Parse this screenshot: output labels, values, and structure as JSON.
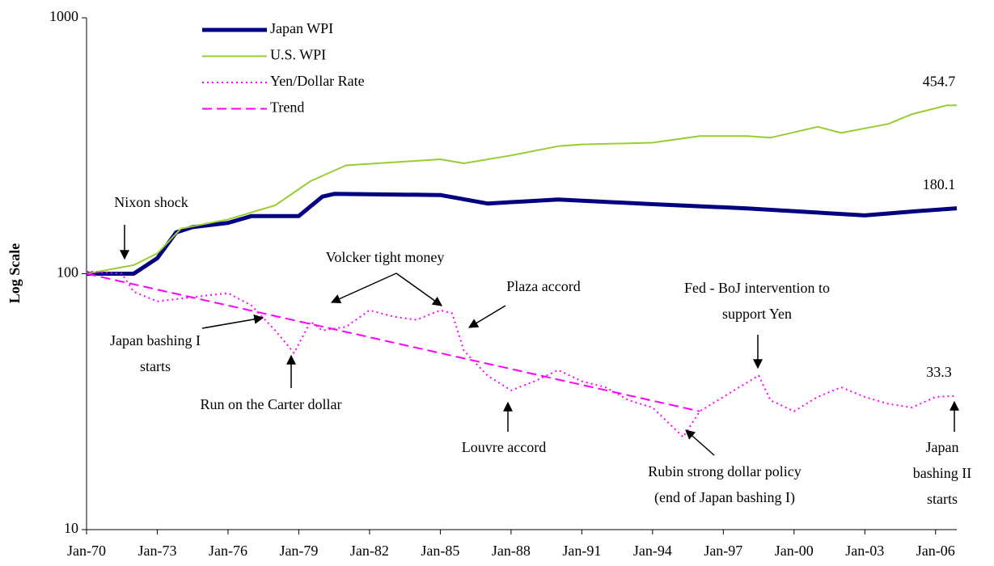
{
  "chart_data": {
    "type": "line",
    "y_label": "Log Scale",
    "log_y": true,
    "ylim": [
      10,
      1000
    ],
    "yticks": [
      10,
      100,
      1000
    ],
    "xlim": [
      1970,
      2006.9
    ],
    "xticks": [
      {
        "value": 1970,
        "label": "Jan-70"
      },
      {
        "value": 1973,
        "label": "Jan-73"
      },
      {
        "value": 1976,
        "label": "Jan-76"
      },
      {
        "value": 1979,
        "label": "Jan-79"
      },
      {
        "value": 1982,
        "label": "Jan-82"
      },
      {
        "value": 1985,
        "label": "Jan-85"
      },
      {
        "value": 1988,
        "label": "Jan-88"
      },
      {
        "value": 1991,
        "label": "Jan-91"
      },
      {
        "value": 1994,
        "label": "Jan-94"
      },
      {
        "value": 1997,
        "label": "Jan-97"
      },
      {
        "value": 2000,
        "label": "Jan-00"
      },
      {
        "value": 2003,
        "label": "Jan-03"
      },
      {
        "value": 2006,
        "label": "Jan-06"
      }
    ],
    "legend": "top-left",
    "series": [
      {
        "name": "Japan WPI",
        "color": "#000080",
        "width": 5,
        "style": "solid",
        "end_label": true,
        "x": [
          1970,
          1972,
          1973,
          1973.8,
          1974.5,
          1976,
          1977,
          1979,
          1980,
          1980.5,
          1985,
          1987,
          1990,
          1994,
          1998,
          2003,
          2005,
          2006.9
        ],
        "values": [
          100,
          100,
          115,
          145,
          152,
          158,
          168,
          168,
          200,
          205,
          203,
          188,
          195,
          187,
          180,
          169,
          175,
          180.1
        ]
      },
      {
        "name": "U.S. WPI",
        "color": "#99cc33",
        "width": 2,
        "style": "solid",
        "end_label": true,
        "x": [
          1970,
          1972,
          1973,
          1974,
          1976,
          1978,
          1979.5,
          1981,
          1985,
          1986,
          1988,
          1990,
          1991,
          1994,
          1996,
          1998,
          1999,
          2001,
          2002,
          2004,
          2005,
          2006.5,
          2006.9
        ],
        "values": [
          100,
          108,
          120,
          150,
          163,
          185,
          230,
          265,
          280,
          270,
          290,
          315,
          320,
          325,
          345,
          345,
          340,
          375,
          355,
          385,
          420,
          455,
          454.7
        ]
      },
      {
        "name": "Yen/Dollar Rate",
        "color": "#ff00ff",
        "width": 2,
        "style": "dotted",
        "end_label": true,
        "x": [
          1970,
          1971.5,
          1972,
          1973,
          1975,
          1976,
          1977,
          1978,
          1978.8,
          1979.5,
          1980,
          1981,
          1982,
          1983,
          1984,
          1985,
          1985.5,
          1986,
          1987,
          1988,
          1989,
          1990,
          1991,
          1992,
          1993,
          1994,
          1995.3,
          1996,
          1997,
          1998.5,
          1999,
          2000,
          2001,
          2002,
          2003,
          2004,
          2005,
          2006,
          2006.9
        ],
        "values": [
          102,
          100,
          85,
          78,
          82,
          84,
          75,
          60,
          49,
          65,
          60,
          62,
          72,
          68,
          66,
          72,
          70,
          50,
          40,
          35,
          38,
          42,
          38,
          36,
          32,
          30,
          23,
          29,
          33,
          40,
          32,
          29,
          33,
          36,
          33,
          31,
          30,
          33,
          33.3
        ]
      },
      {
        "name": "Trend",
        "color": "#ff00ff",
        "width": 2,
        "style": "dashed",
        "end_label": false,
        "x": [
          1970,
          1996
        ],
        "values": [
          100,
          29
        ]
      }
    ],
    "annotations": [
      [
        "Nixon shock"
      ],
      [
        "Volcker tight money"
      ],
      [
        "Plaza accord"
      ],
      [
        "Fed - BoJ intervention to",
        "support Yen"
      ],
      [
        "Japan bashing I",
        "starts"
      ],
      [
        "Run on the Carter dollar"
      ],
      [
        "Louvre accord"
      ],
      [
        "Rubin strong dollar policy",
        "(end of Japan bashing I)"
      ],
      [
        "Japan",
        "bashing II",
        "starts"
      ]
    ]
  }
}
